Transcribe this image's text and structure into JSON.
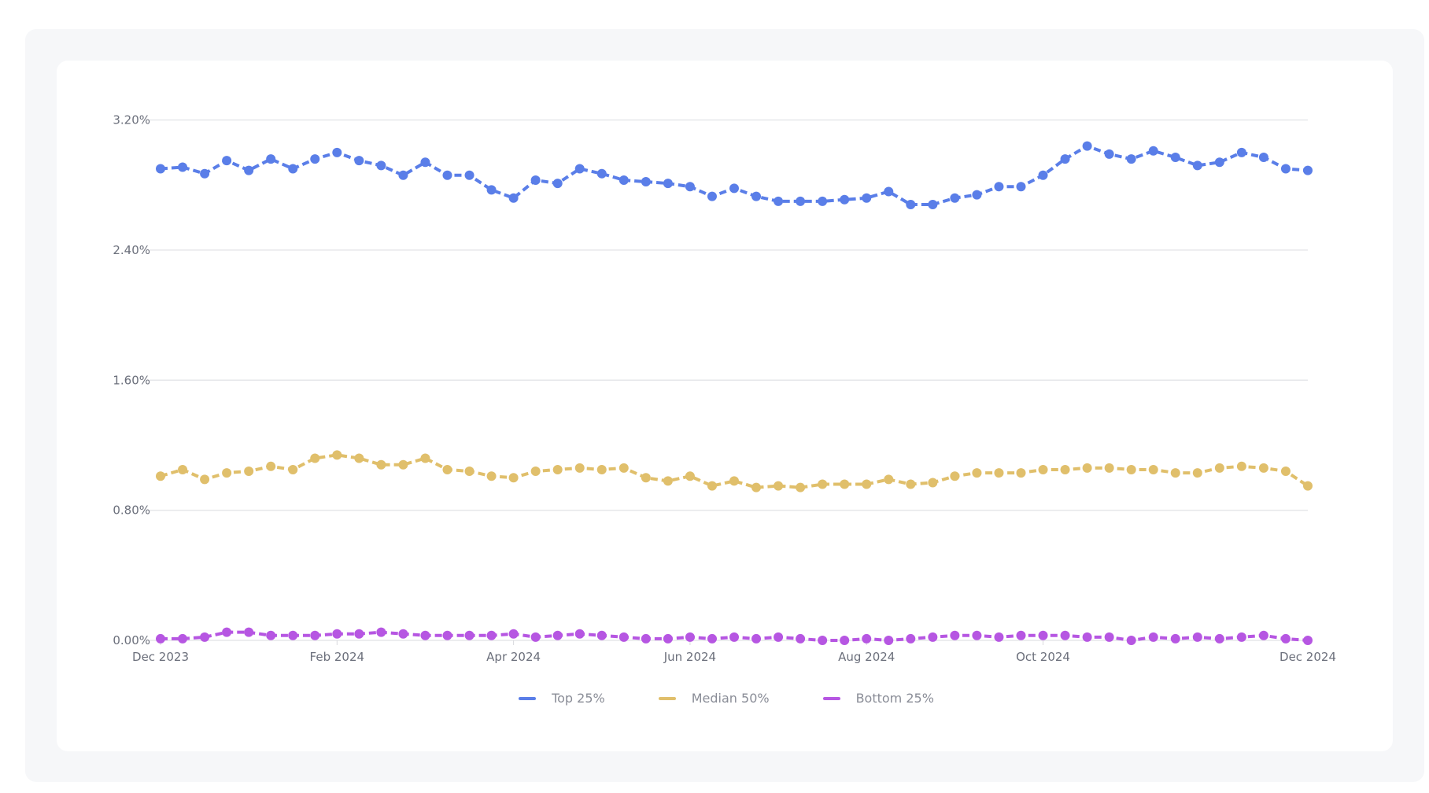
{
  "chart_data": {
    "type": "line",
    "title": "",
    "xlabel": "",
    "ylabel": "",
    "ylim": [
      0,
      3.2
    ],
    "yticks": [
      "0.00%",
      "0.80%",
      "1.60%",
      "2.40%",
      "3.20%"
    ],
    "ytick_values": [
      0,
      0.8,
      1.6,
      2.4,
      3.2
    ],
    "xticks": [
      "Dec 2023",
      "Feb 2024",
      "Apr 2024",
      "Jun 2024",
      "Aug 2024",
      "Oct 2024",
      "Dec 2024"
    ],
    "xtick_indices": [
      0,
      8,
      16,
      24,
      32,
      40,
      52
    ],
    "x_frequency": "weekly",
    "grid": true,
    "legend_placement": "bottom",
    "line_style": "dashed with markers",
    "series": [
      {
        "name": "Top 25%",
        "color": "#5a7ee8",
        "values": [
          2.9,
          2.91,
          2.87,
          2.95,
          2.89,
          2.96,
          2.9,
          2.96,
          3.0,
          2.95,
          2.92,
          2.86,
          2.94,
          2.86,
          2.86,
          2.77,
          2.72,
          2.83,
          2.81,
          2.9,
          2.87,
          2.83,
          2.82,
          2.81,
          2.79,
          2.73,
          2.78,
          2.73,
          2.7,
          2.7,
          2.7,
          2.71,
          2.72,
          2.76,
          2.68,
          2.68,
          2.72,
          2.74,
          2.79,
          2.79,
          2.86,
          2.96,
          3.04,
          2.99,
          2.96,
          3.01,
          2.97,
          2.92,
          2.94,
          3.0,
          2.97,
          2.9,
          2.89
        ]
      },
      {
        "name": "Median 50%",
        "color": "#e0bf6b",
        "values": [
          1.01,
          1.05,
          0.99,
          1.03,
          1.04,
          1.07,
          1.05,
          1.12,
          1.14,
          1.12,
          1.08,
          1.08,
          1.12,
          1.05,
          1.04,
          1.01,
          1.0,
          1.04,
          1.05,
          1.06,
          1.05,
          1.06,
          1.0,
          0.98,
          1.01,
          0.95,
          0.98,
          0.94,
          0.95,
          0.94,
          0.96,
          0.96,
          0.96,
          0.99,
          0.96,
          0.97,
          1.01,
          1.03,
          1.03,
          1.03,
          1.05,
          1.05,
          1.06,
          1.06,
          1.05,
          1.05,
          1.03,
          1.03,
          1.06,
          1.07,
          1.06,
          1.04,
          0.95
        ]
      },
      {
        "name": "Bottom 25%",
        "color": "#b656e2",
        "values": [
          0.01,
          0.01,
          0.02,
          0.05,
          0.05,
          0.03,
          0.03,
          0.03,
          0.04,
          0.04,
          0.05,
          0.04,
          0.03,
          0.03,
          0.03,
          0.03,
          0.04,
          0.02,
          0.03,
          0.04,
          0.03,
          0.02,
          0.01,
          0.01,
          0.02,
          0.01,
          0.02,
          0.01,
          0.02,
          0.01,
          0.0,
          0.0,
          0.01,
          0.0,
          0.01,
          0.02,
          0.03,
          0.03,
          0.02,
          0.03,
          0.03,
          0.03,
          0.02,
          0.02,
          0.0,
          0.02,
          0.01,
          0.02,
          0.01,
          0.02,
          0.03,
          0.01,
          0.0
        ]
      }
    ]
  }
}
